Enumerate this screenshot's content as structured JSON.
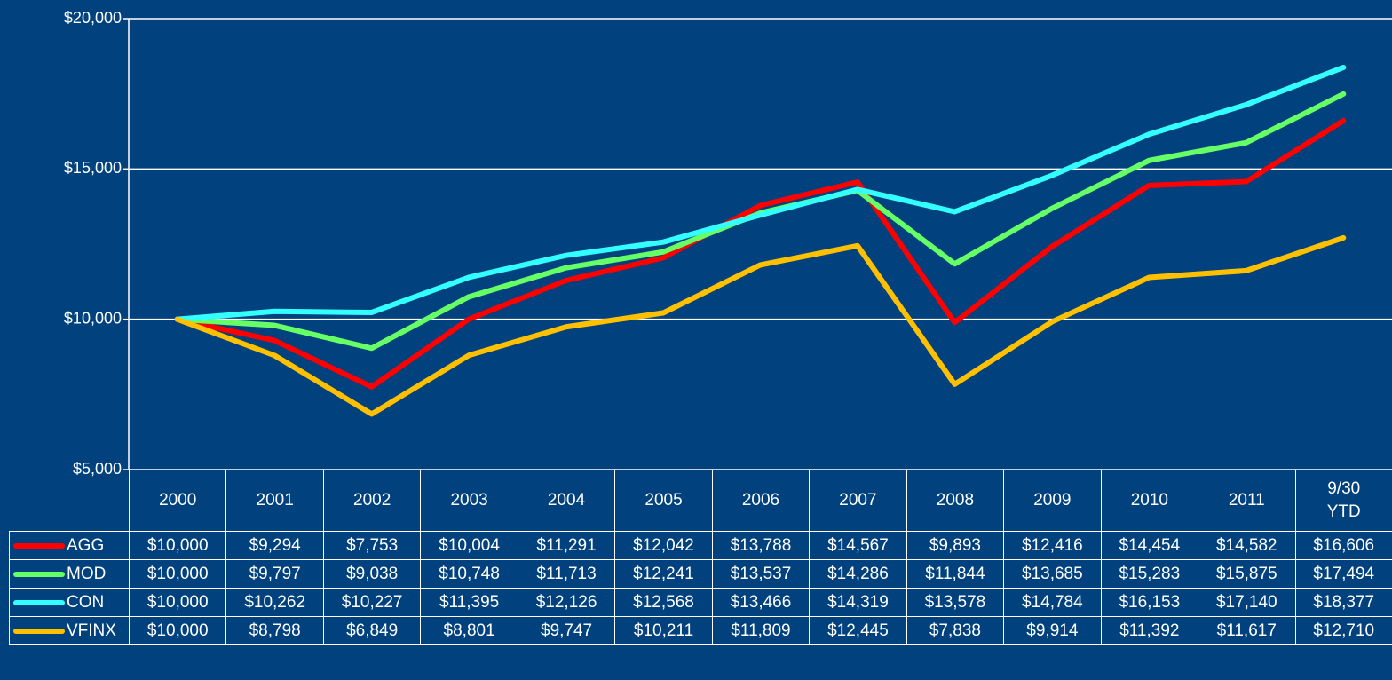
{
  "chart_data": {
    "type": "line",
    "categories": [
      "2000",
      "2001",
      "2002",
      "2003",
      "2004",
      "2005",
      "2006",
      "2007",
      "2008",
      "2009",
      "2010",
      "2011",
      "9/30 YTD"
    ],
    "series": [
      {
        "name": "AGG",
        "color": "#ff0000",
        "values": [
          10000,
          9294,
          7753,
          10004,
          11291,
          12042,
          13788,
          14567,
          9893,
          12416,
          14454,
          14582,
          16606
        ],
        "value_labels": [
          "$10,000",
          "$9,294",
          "$7,753",
          "$10,004",
          "$11,291",
          "$12,042",
          "$13,788",
          "$14,567",
          "$9,893",
          "$12,416",
          "$14,454",
          "$14,582",
          "$16,606"
        ]
      },
      {
        "name": "MOD",
        "color": "#66ff66",
        "values": [
          10000,
          9797,
          9038,
          10748,
          11713,
          12241,
          13537,
          14286,
          11844,
          13685,
          15283,
          15875,
          17494
        ],
        "value_labels": [
          "$10,000",
          "$9,797",
          "$9,038",
          "$10,748",
          "$11,713",
          "$12,241",
          "$13,537",
          "$14,286",
          "$11,844",
          "$13,685",
          "$15,283",
          "$15,875",
          "$17,494"
        ]
      },
      {
        "name": "CON",
        "color": "#33ffff",
        "values": [
          10000,
          10262,
          10227,
          11395,
          12126,
          12568,
          13466,
          14319,
          13578,
          14784,
          16153,
          17140,
          18377
        ],
        "value_labels": [
          "$10,000",
          "$10,262",
          "$10,227",
          "$11,395",
          "$12,126",
          "$12,568",
          "$13,466",
          "$14,319",
          "$13,578",
          "$14,784",
          "$16,153",
          "$17,140",
          "$18,377"
        ]
      },
      {
        "name": "VFINX",
        "color": "#ffc000",
        "values": [
          10000,
          8798,
          6849,
          8801,
          9747,
          10211,
          11809,
          12445,
          7838,
          9914,
          11392,
          11617,
          12710
        ],
        "value_labels": [
          "$10,000",
          "$8,798",
          "$6,849",
          "$8,801",
          "$9,747",
          "$10,211",
          "$11,809",
          "$12,445",
          "$7,838",
          "$9,914",
          "$11,392",
          "$11,617",
          "$12,710"
        ]
      }
    ],
    "ylim": [
      5000,
      20000
    ],
    "yticks": [
      {
        "value": 5000,
        "label": "$5,000"
      },
      {
        "value": 10000,
        "label": "$10,000"
      },
      {
        "value": 15000,
        "label": "$15,000"
      },
      {
        "value": 20000,
        "label": "$20,000"
      }
    ],
    "grid": true
  }
}
